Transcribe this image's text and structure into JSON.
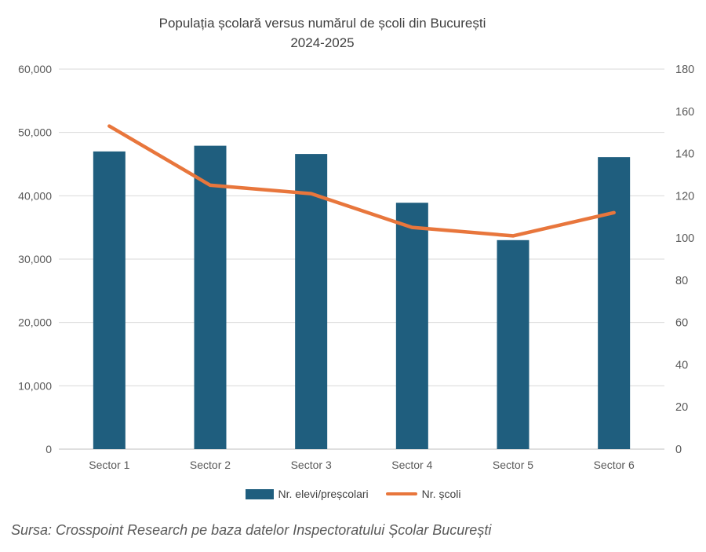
{
  "title": {
    "line1": "Populația școlară versus numărul de școli din București",
    "line2": "2024-2025"
  },
  "legend": {
    "bars_label": "Nr. elevi/preșcolari",
    "line_label": "Nr. școli"
  },
  "source": "Sursa: Crosspoint Research pe baza datelor Inspectoratului Școlar București",
  "colors": {
    "bars": "#1F5E7E",
    "line": "#E8763C",
    "grid": "#D9D9D9",
    "axis_line": "#BFBFBF",
    "axis_text": "#595959",
    "title_text": "#3F3F3F",
    "source_text": "#595959",
    "background": "#FFFFFF"
  },
  "chart_data": {
    "type": "bar",
    "subtype": "bar+line combo, dual axis",
    "title": "Populația școlară versus numărul de școli din București 2024-2025",
    "categories": [
      "Sector 1",
      "Sector 2",
      "Sector 3",
      "Sector 4",
      "Sector 5",
      "Sector 6"
    ],
    "series": [
      {
        "name": "Nr. elevi/preșcolari",
        "type": "bar",
        "axis": "left",
        "values": [
          47000,
          47900,
          46600,
          38900,
          33000,
          46100
        ]
      },
      {
        "name": "Nr. școli",
        "type": "line",
        "axis": "right",
        "values": [
          153,
          125,
          121,
          105,
          101,
          112
        ]
      }
    ],
    "left_axis": {
      "min": 0,
      "max": 60000,
      "ticks": [
        0,
        10000,
        20000,
        30000,
        40000,
        50000,
        60000
      ],
      "tick_format": "thousands with comma"
    },
    "right_axis": {
      "min": 0,
      "max": 180,
      "ticks": [
        0,
        20,
        40,
        60,
        80,
        100,
        120,
        140,
        160,
        180
      ]
    },
    "grid": true,
    "legend_position": "bottom",
    "xlabel": "",
    "ylabel_left": "",
    "ylabel_right": ""
  }
}
